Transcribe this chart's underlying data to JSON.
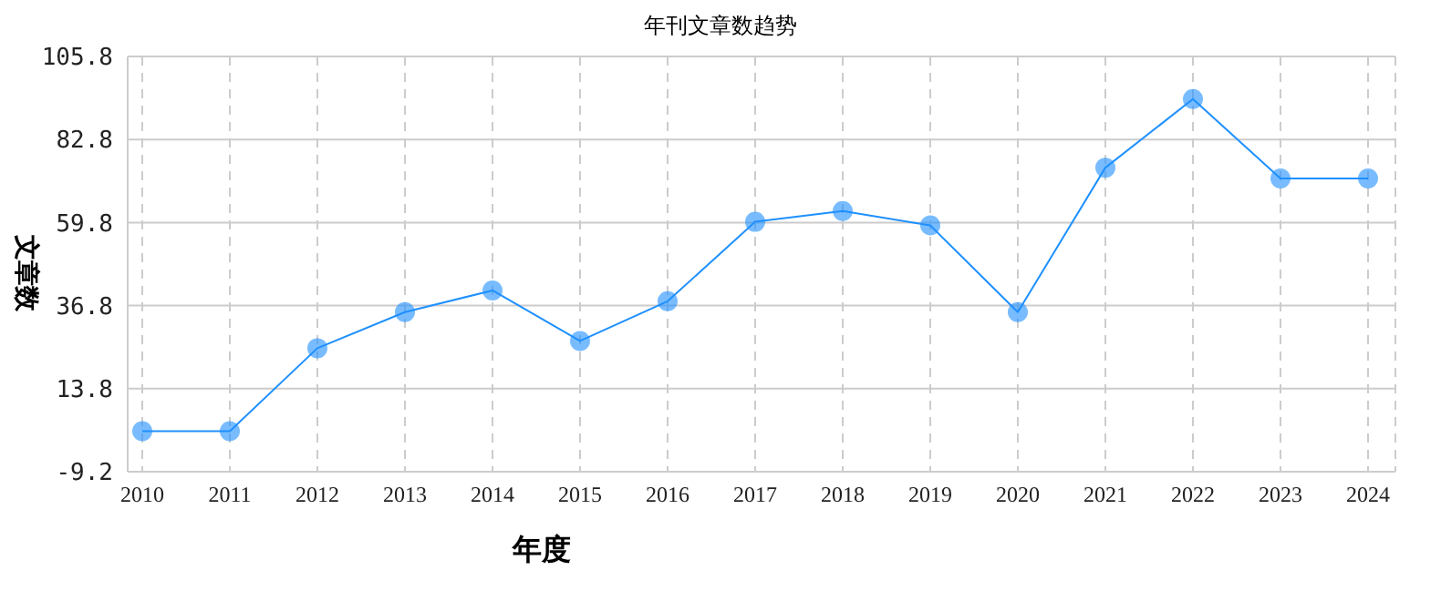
{
  "chart_data": {
    "type": "line",
    "title": "年刊文章数趋势",
    "xlabel": "年度",
    "ylabel": "文章数",
    "categories": [
      "2010",
      "2011",
      "2012",
      "2013",
      "2014",
      "2015",
      "2016",
      "2017",
      "2018",
      "2019",
      "2020",
      "2021",
      "2022",
      "2023",
      "2024"
    ],
    "series": [
      {
        "color": "#1e90ff",
        "values": [
          2,
          2,
          25,
          35,
          41,
          27,
          38,
          60,
          63,
          59,
          35,
          75,
          94,
          72,
          72
        ]
      }
    ],
    "ylim": [
      -9.2,
      105.8
    ],
    "yticks": [
      -9.2,
      13.8,
      36.8,
      59.8,
      82.8,
      105.8
    ],
    "grid": true,
    "marker": "circle",
    "line_style": "solid"
  }
}
